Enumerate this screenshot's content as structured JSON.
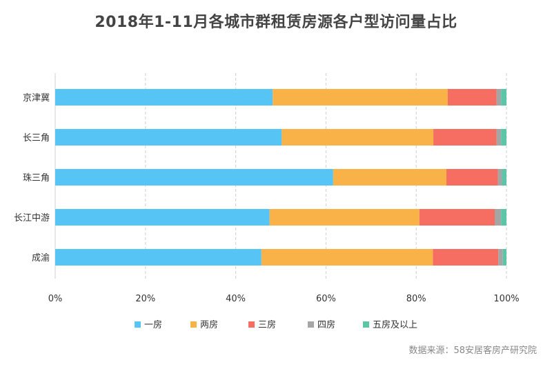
{
  "chart_data": {
    "type": "bar",
    "orientation": "horizontal",
    "stacked": true,
    "percent": true,
    "title": "2018年1-11月各城市群租赁房源各户型访问量占比",
    "categories": [
      "京津冀",
      "长三角",
      "珠三角",
      "长江中游",
      "成渝"
    ],
    "series": [
      {
        "name": "一房",
        "color": "#56c5f5",
        "values": [
          48.2,
          50.2,
          61.6,
          47.5,
          45.7
        ]
      },
      {
        "name": "两房",
        "color": "#f8b247",
        "values": [
          38.8,
          33.6,
          25.1,
          33.2,
          38.0
        ]
      },
      {
        "name": "三房",
        "color": "#f56e61",
        "values": [
          10.8,
          14.0,
          11.4,
          16.7,
          14.5
        ]
      },
      {
        "name": "四房",
        "color": "#a5a5a5",
        "values": [
          1.0,
          1.0,
          0.9,
          1.4,
          1.0
        ]
      },
      {
        "name": "五房及以上",
        "color": "#5cc5a8",
        "values": [
          1.2,
          1.2,
          1.0,
          1.2,
          0.8
        ]
      }
    ],
    "xlim": [
      0,
      100
    ],
    "x_ticks": [
      "0%",
      "20%",
      "40%",
      "60%",
      "80%",
      "100%"
    ],
    "grid": true,
    "legend_position": "bottom"
  },
  "source_note": "数据来源：58安居客房产研究院"
}
